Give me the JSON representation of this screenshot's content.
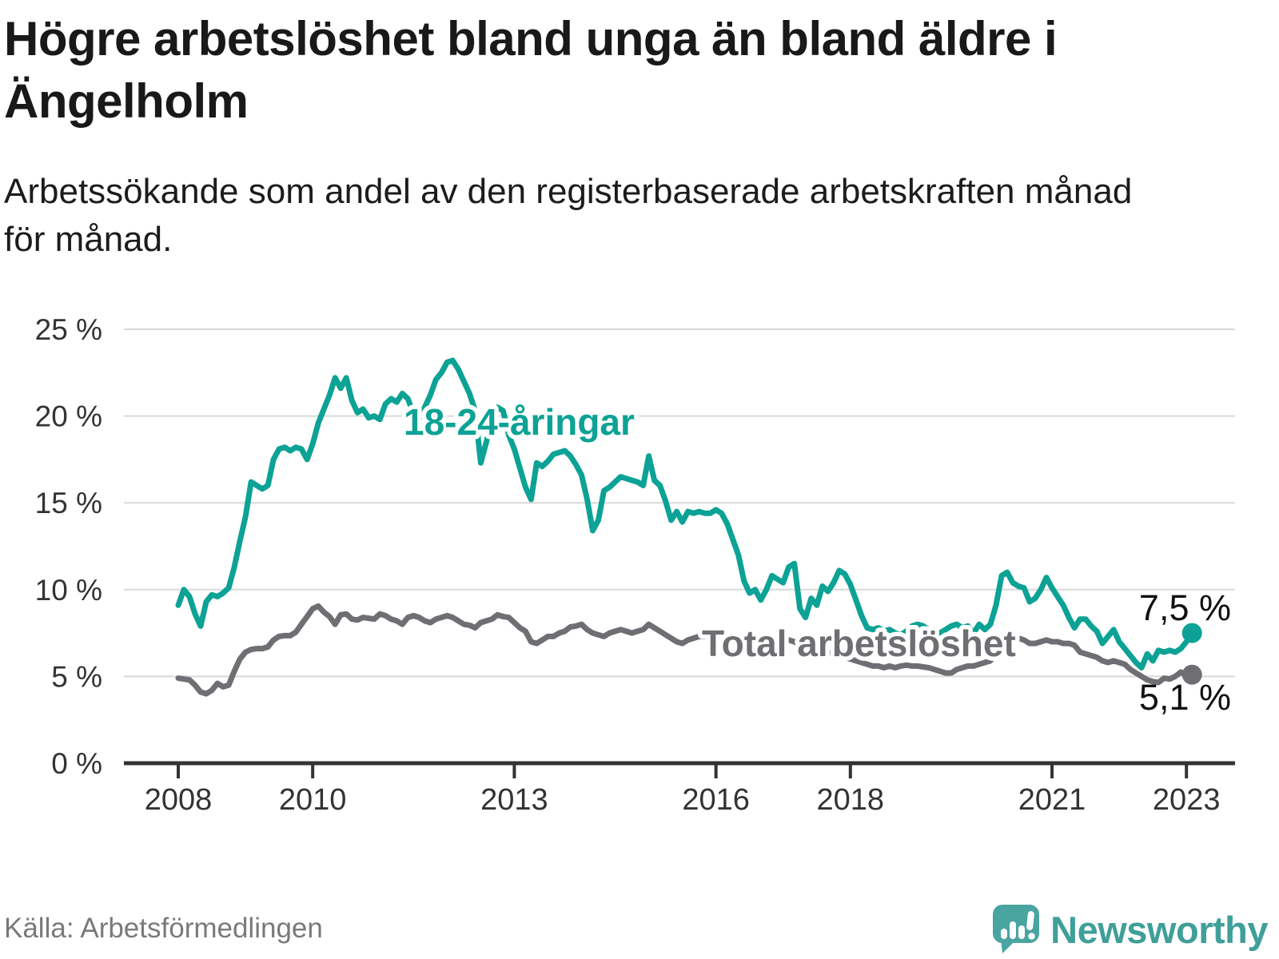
{
  "page": {
    "title": "Högre arbetslöshet bland unga än bland äldre i Ängelholm",
    "subtitle": "Arbetssökande som andel av den registerbaserade arbetskraften månad för månad.",
    "source": "Källa: Arbetsförmedlingen",
    "brand": "Newsworthy"
  },
  "colors": {
    "youth_line": "#0ca295",
    "total_line": "#6f6e73",
    "grid": "#d9d9d9",
    "axis": "#333333",
    "tick_text": "#333333",
    "value_text": "#111111",
    "logo_teal": "#4aa5a0",
    "logo_word": "#3f9f99"
  },
  "chart_data": {
    "type": "line",
    "title": "Högre arbetslöshet bland unga än bland äldre i Ängelholm",
    "xlabel": "",
    "ylabel": "",
    "frequency": "monthly",
    "x_start": "2008-01",
    "x_end": "2023-02",
    "ylim": [
      0,
      25
    ],
    "grid": "horizontal",
    "legend_position": "inline-labels",
    "x_tick_years": [
      2008,
      2010,
      2013,
      2016,
      2018,
      2021,
      2023
    ],
    "y_ticks": [
      {
        "value": 25,
        "label": "25 %"
      },
      {
        "value": 20,
        "label": "20 %"
      },
      {
        "value": 15,
        "label": "15 %"
      },
      {
        "value": 10,
        "label": "10 %"
      },
      {
        "value": 5,
        "label": "5 %"
      },
      {
        "value": 0,
        "label": "0 %"
      }
    ],
    "series": [
      {
        "name": "18-24-åringar",
        "color": "#0ca295",
        "end_label": "7,5 %",
        "end_value": 7.5,
        "values": [
          9.1,
          10.0,
          9.6,
          8.6,
          7.9,
          9.3,
          9.7,
          9.6,
          9.8,
          10.1,
          11.3,
          12.8,
          14.2,
          16.2,
          16.0,
          15.8,
          16.0,
          17.5,
          18.1,
          18.2,
          18.0,
          18.2,
          18.1,
          17.5,
          18.4,
          19.6,
          20.4,
          21.2,
          22.2,
          21.6,
          22.2,
          20.9,
          20.2,
          20.4,
          19.9,
          20.0,
          19.8,
          20.7,
          21.0,
          20.8,
          21.3,
          21.0,
          20.1,
          19.8,
          20.5,
          21.2,
          22.1,
          22.5,
          23.1,
          23.2,
          22.7,
          22.0,
          21.3,
          20.3,
          17.3,
          18.5,
          19.8,
          20.5,
          20.3,
          18.9,
          18.1,
          17.0,
          15.9,
          15.2,
          17.3,
          17.1,
          17.4,
          17.8,
          17.9,
          18.0,
          17.7,
          17.2,
          16.6,
          15.2,
          13.4,
          14.0,
          15.7,
          15.9,
          16.2,
          16.5,
          16.4,
          16.3,
          16.2,
          16.0,
          17.7,
          16.3,
          16.0,
          15.1,
          14.0,
          14.5,
          13.9,
          14.5,
          14.4,
          14.5,
          14.4,
          14.4,
          14.6,
          14.4,
          13.8,
          12.9,
          12.0,
          10.5,
          9.8,
          10.0,
          9.4,
          10.0,
          10.8,
          10.6,
          10.4,
          11.3,
          11.5,
          8.9,
          8.4,
          9.5,
          9.1,
          10.2,
          9.9,
          10.4,
          11.1,
          10.9,
          10.3,
          9.4,
          8.5,
          7.8,
          7.7,
          7.8,
          7.6,
          7.7,
          7.5,
          7.4,
          7.6,
          7.9,
          8.0,
          7.9,
          7.7,
          7.6,
          7.5,
          7.7,
          7.9,
          8.0,
          7.8,
          7.9,
          7.5,
          8.0,
          7.7,
          8.0,
          9.1,
          10.8,
          11.0,
          10.4,
          10.2,
          10.1,
          9.3,
          9.5,
          10.0,
          10.7,
          10.1,
          9.6,
          9.1,
          8.4,
          7.8,
          8.3,
          8.3,
          7.9,
          7.6,
          6.9,
          7.3,
          7.7,
          7.0,
          6.6,
          6.2,
          5.8,
          5.5,
          6.3,
          5.9,
          6.5,
          6.4,
          6.5,
          6.4,
          6.6,
          7.0,
          7.5
        ]
      },
      {
        "name": "Total arbetslöshet",
        "color": "#6f6e73",
        "end_label": "5,1 %",
        "end_value": 5.1,
        "values": [
          4.9,
          4.85,
          4.8,
          4.5,
          4.1,
          4.0,
          4.2,
          4.6,
          4.4,
          4.5,
          5.3,
          6.0,
          6.4,
          6.55,
          6.6,
          6.6,
          6.7,
          7.1,
          7.3,
          7.35,
          7.35,
          7.55,
          8.0,
          8.45,
          8.9,
          9.05,
          8.7,
          8.45,
          8.0,
          8.55,
          8.6,
          8.3,
          8.25,
          8.4,
          8.35,
          8.3,
          8.6,
          8.5,
          8.3,
          8.2,
          8.0,
          8.4,
          8.5,
          8.4,
          8.2,
          8.1,
          8.3,
          8.4,
          8.5,
          8.4,
          8.2,
          8.0,
          7.95,
          7.8,
          8.1,
          8.2,
          8.3,
          8.55,
          8.45,
          8.4,
          8.1,
          7.8,
          7.6,
          7.0,
          6.9,
          7.1,
          7.3,
          7.3,
          7.5,
          7.6,
          7.85,
          7.9,
          8.0,
          7.7,
          7.5,
          7.4,
          7.3,
          7.5,
          7.6,
          7.7,
          7.6,
          7.5,
          7.6,
          7.7,
          8.0,
          7.8,
          7.6,
          7.4,
          7.2,
          7.0,
          6.9,
          7.1,
          7.2,
          7.3,
          7.3,
          7.4,
          7.5,
          7.4,
          7.3,
          7.1,
          7.0,
          6.9,
          6.9,
          7.0,
          6.9,
          7.0,
          7.1,
          7.2,
          7.2,
          7.1,
          7.0,
          6.8,
          6.6,
          6.5,
          6.4,
          6.5,
          6.4,
          6.3,
          6.2,
          6.1,
          6.0,
          5.9,
          5.8,
          5.7,
          5.6,
          5.6,
          5.5,
          5.6,
          5.5,
          5.6,
          5.65,
          5.6,
          5.6,
          5.55,
          5.5,
          5.4,
          5.3,
          5.2,
          5.2,
          5.4,
          5.5,
          5.6,
          5.6,
          5.7,
          5.8,
          5.9,
          6.4,
          7.3,
          7.4,
          7.3,
          7.2,
          7.1,
          6.9,
          6.9,
          7.0,
          7.1,
          7.0,
          7.0,
          6.9,
          6.9,
          6.8,
          6.4,
          6.3,
          6.2,
          6.1,
          5.9,
          5.8,
          5.9,
          5.8,
          5.7,
          5.4,
          5.2,
          5.0,
          4.8,
          4.7,
          4.65,
          4.9,
          4.85,
          5.0,
          5.25,
          5.05,
          5.1
        ]
      }
    ]
  }
}
